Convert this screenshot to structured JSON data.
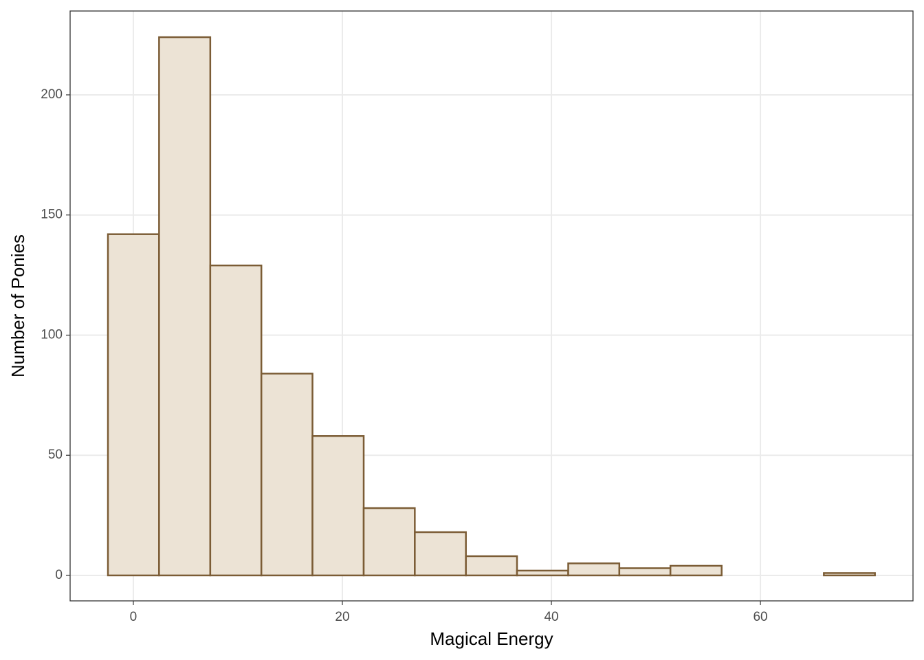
{
  "chart_data": {
    "type": "histogram",
    "x_label": "Magical Energy",
    "y_label": "Number of Ponies",
    "bins": [
      -2.43,
      2.46,
      7.36,
      12.25,
      17.14,
      22.04,
      26.93,
      31.82,
      36.71,
      41.61,
      46.5,
      51.39,
      56.29,
      61.18,
      66.07,
      70.96
    ],
    "counts": [
      142,
      224,
      129,
      84,
      58,
      28,
      18,
      8,
      2,
      5,
      3,
      4,
      0,
      0,
      1
    ],
    "color": "#ece3d5",
    "edge_color": "#7b5c35",
    "xlim": [
      -6.05,
      74.6
    ],
    "ylim": [
      -10.6,
      234.9
    ],
    "xticks": [
      0,
      20,
      40,
      60
    ],
    "yticks": [
      0,
      50,
      100,
      150,
      200
    ],
    "grid": true
  }
}
